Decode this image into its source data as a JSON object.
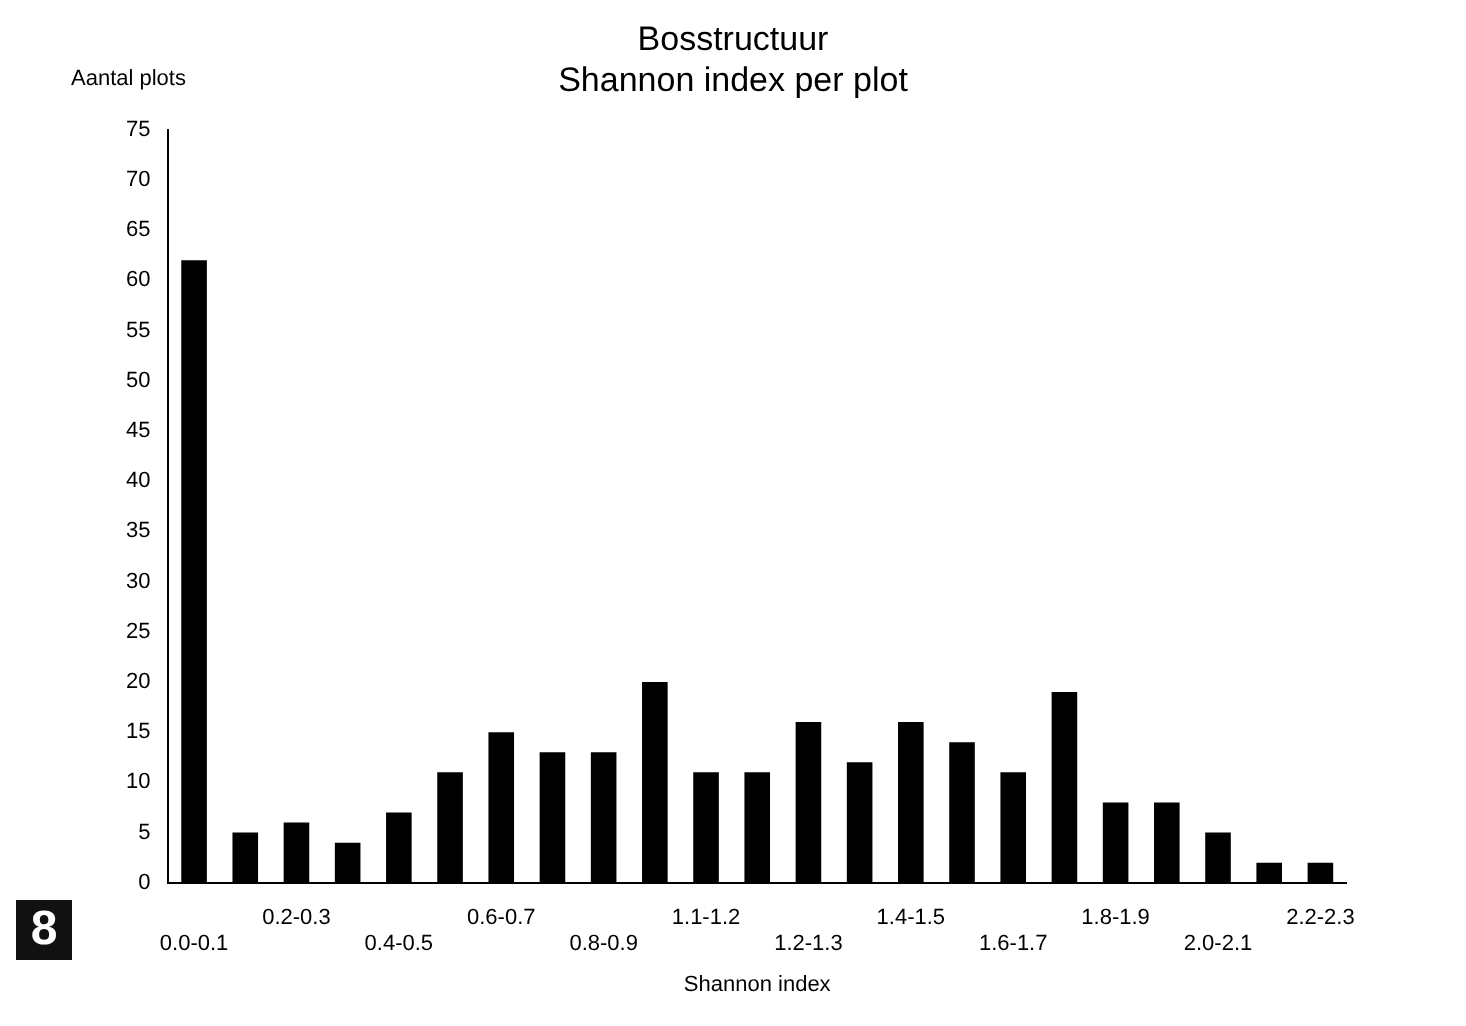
{
  "chart_data": {
    "type": "bar",
    "title": "Bosstructuur",
    "subtitle": "Shannon index per plot",
    "xlabel": "Shannon index",
    "ylabel": "Aantal plots",
    "categories": [
      "0.0-0.1",
      null,
      "0.2-0.3",
      null,
      "0.4-0.5",
      null,
      "0.6-0.7",
      null,
      "0.8-0.9",
      null,
      "1.1-1.2",
      null,
      "1.2-1.3",
      null,
      "1.4-1.5",
      null,
      "1.6-1.7",
      null,
      "1.8-1.9",
      null,
      "2.0-2.1",
      null,
      "2.2-2.3"
    ],
    "values": [
      62,
      5,
      6,
      4,
      7,
      11,
      15,
      13,
      13,
      20,
      11,
      11,
      16,
      12,
      16,
      14,
      11,
      19,
      8,
      8,
      5,
      2,
      2
    ],
    "color": "#000000",
    "ylim": [
      0,
      75
    ],
    "yticks": [
      0,
      5,
      10,
      15,
      20,
      25,
      30,
      35,
      40,
      45,
      50,
      55,
      60,
      65,
      70,
      75
    ],
    "grid": false,
    "legend": false,
    "annotations": [
      "8"
    ]
  }
}
